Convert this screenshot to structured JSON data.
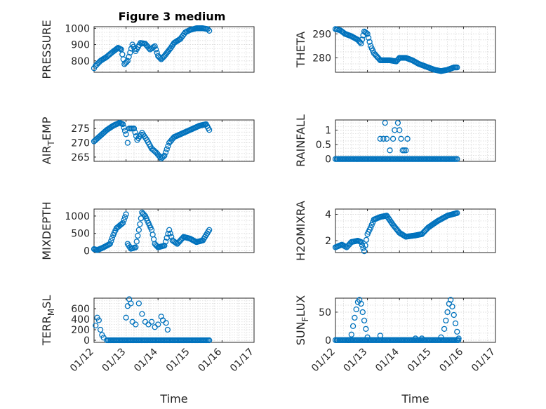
{
  "figure_title": "Figure 3 medium",
  "colors": {
    "marker": "#0072BD",
    "axis": "#262626",
    "grid": "#d9d9d9",
    "background": "#ffffff"
  },
  "chart_data": [
    {
      "type": "scatter",
      "ylabel": "PRESSURE",
      "title": "Figure 3 medium",
      "xlim": [
        0,
        5
      ],
      "ylim": [
        730,
        1010
      ],
      "yticks": [
        800,
        900,
        1000
      ],
      "xtick_labels": [],
      "xlabel": "",
      "grid": true,
      "keypoints": [
        [
          0,
          755
        ],
        [
          0.05,
          770
        ],
        [
          0.2,
          800
        ],
        [
          0.4,
          825
        ],
        [
          0.55,
          850
        ],
        [
          0.75,
          880
        ],
        [
          0.85,
          870
        ],
        [
          0.95,
          780
        ],
        [
          1.05,
          800
        ],
        [
          1.2,
          900
        ],
        [
          1.3,
          860
        ],
        [
          1.45,
          910
        ],
        [
          1.6,
          905
        ],
        [
          1.75,
          870
        ],
        [
          1.9,
          890
        ],
        [
          2.0,
          830
        ],
        [
          2.1,
          810
        ],
        [
          2.2,
          830
        ],
        [
          2.4,
          880
        ],
        [
          2.5,
          910
        ],
        [
          2.7,
          935
        ],
        [
          2.85,
          975
        ],
        [
          3.0,
          990
        ],
        [
          3.2,
          1000
        ],
        [
          3.4,
          1000
        ],
        [
          3.55,
          995
        ],
        [
          3.6,
          985
        ]
      ]
    },
    {
      "type": "scatter",
      "ylabel": "THETA",
      "title": "",
      "xlim": [
        0,
        5
      ],
      "ylim": [
        274,
        293
      ],
      "yticks": [
        280,
        290
      ],
      "xtick_labels": [],
      "xlabel": "",
      "grid": true,
      "keypoints": [
        [
          0,
          292
        ],
        [
          0.15,
          291.5
        ],
        [
          0.3,
          290
        ],
        [
          0.5,
          289
        ],
        [
          0.7,
          287.5
        ],
        [
          0.8,
          286
        ],
        [
          0.9,
          291
        ],
        [
          1.0,
          290
        ],
        [
          1.1,
          285
        ],
        [
          1.2,
          282
        ],
        [
          1.4,
          279
        ],
        [
          1.7,
          279
        ],
        [
          1.9,
          278.5
        ],
        [
          2.0,
          280
        ],
        [
          2.2,
          280
        ],
        [
          2.4,
          279
        ],
        [
          2.6,
          277.5
        ],
        [
          2.9,
          276
        ],
        [
          3.1,
          275
        ],
        [
          3.3,
          274.5
        ],
        [
          3.5,
          275
        ],
        [
          3.7,
          276
        ],
        [
          3.8,
          276
        ]
      ]
    },
    {
      "type": "scatter",
      "ylabel": "AIR_TEMP",
      "title": "",
      "xlim": [
        0,
        5
      ],
      "ylim": [
        263.5,
        278
      ],
      "yticks": [
        265,
        270,
        275
      ],
      "xtick_labels": [],
      "xlabel": "",
      "grid": true,
      "keypoints": [
        [
          0,
          270.5
        ],
        [
          0.2,
          272.5
        ],
        [
          0.4,
          274.5
        ],
        [
          0.6,
          276
        ],
        [
          0.8,
          277
        ],
        [
          0.9,
          276.5
        ],
        [
          1.0,
          273
        ],
        [
          1.05,
          270
        ],
        [
          1.1,
          275
        ],
        [
          1.25,
          275
        ],
        [
          1.35,
          271
        ],
        [
          1.5,
          273.5
        ],
        [
          1.65,
          271
        ],
        [
          1.8,
          268
        ],
        [
          1.95,
          266.5
        ],
        [
          2.1,
          264.5
        ],
        [
          2.2,
          265.5
        ],
        [
          2.35,
          270
        ],
        [
          2.5,
          272
        ],
        [
          2.7,
          273
        ],
        [
          2.9,
          274
        ],
        [
          3.1,
          275
        ],
        [
          3.3,
          276
        ],
        [
          3.5,
          276.5
        ],
        [
          3.6,
          274.5
        ]
      ]
    },
    {
      "type": "scatter",
      "ylabel": "RAINFALL",
      "title": "",
      "xlim": [
        0,
        5
      ],
      "ylim": [
        -0.08,
        1.35
      ],
      "yticks": [
        0,
        0.5,
        1
      ],
      "ytick_labels": [
        "0",
        "0.5",
        "1"
      ],
      "xtick_labels": [],
      "xlabel": "",
      "grid": true,
      "points": [
        [
          1.4,
          0.7
        ],
        [
          1.5,
          0.7
        ],
        [
          1.55,
          1.25
        ],
        [
          1.6,
          0.7
        ],
        [
          1.7,
          0.3
        ],
        [
          1.8,
          0.7
        ],
        [
          1.85,
          1.0
        ],
        [
          1.95,
          1.25
        ],
        [
          2.0,
          1.0
        ],
        [
          2.05,
          0.7
        ],
        [
          2.1,
          0.3
        ],
        [
          2.15,
          0.3
        ],
        [
          2.2,
          0.3
        ],
        [
          2.25,
          0.7
        ]
      ],
      "baseline": {
        "value": 0,
        "x_from": 0,
        "x_to": 3.8
      }
    },
    {
      "type": "scatter",
      "ylabel": "MIXDEPTH",
      "title": "",
      "xlim": [
        0,
        5
      ],
      "ylim": [
        -50,
        1200
      ],
      "yticks": [
        0,
        500,
        1000
      ],
      "xtick_labels": [],
      "xlabel": "",
      "grid": true,
      "keypoints": [
        [
          0,
          50
        ],
        [
          0.1,
          20
        ],
        [
          0.3,
          100
        ],
        [
          0.5,
          200
        ],
        [
          0.6,
          450
        ],
        [
          0.7,
          650
        ],
        [
          0.9,
          800
        ],
        [
          1.0,
          1050
        ],
        [
          1.05,
          200
        ],
        [
          1.15,
          60
        ],
        [
          1.3,
          100
        ],
        [
          1.5,
          1100
        ],
        [
          1.6,
          1000
        ],
        [
          1.7,
          800
        ],
        [
          1.8,
          600
        ],
        [
          1.9,
          200
        ],
        [
          2.0,
          100
        ],
        [
          2.2,
          150
        ],
        [
          2.35,
          600
        ],
        [
          2.45,
          300
        ],
        [
          2.6,
          200
        ],
        [
          2.8,
          400
        ],
        [
          3.0,
          350
        ],
        [
          3.2,
          250
        ],
        [
          3.4,
          300
        ],
        [
          3.6,
          600
        ]
      ]
    },
    {
      "type": "scatter",
      "ylabel": "H2OMIXRA",
      "title": "",
      "xlim": [
        0,
        5
      ],
      "ylim": [
        1.1,
        4.4
      ],
      "yticks": [
        2,
        4
      ],
      "xtick_labels": [],
      "xlabel": "",
      "grid": true,
      "keypoints": [
        [
          0,
          1.5
        ],
        [
          0.2,
          1.7
        ],
        [
          0.35,
          1.5
        ],
        [
          0.5,
          1.9
        ],
        [
          0.7,
          2.0
        ],
        [
          0.8,
          1.9
        ],
        [
          0.9,
          1.2
        ],
        [
          1.0,
          2.5
        ],
        [
          1.1,
          3.0
        ],
        [
          1.2,
          3.6
        ],
        [
          1.4,
          3.8
        ],
        [
          1.6,
          3.9
        ],
        [
          1.8,
          3.2
        ],
        [
          2.0,
          2.6
        ],
        [
          2.2,
          2.3
        ],
        [
          2.5,
          2.4
        ],
        [
          2.7,
          2.5
        ],
        [
          2.9,
          3.0
        ],
        [
          3.2,
          3.5
        ],
        [
          3.5,
          3.9
        ],
        [
          3.8,
          4.1
        ]
      ]
    },
    {
      "type": "scatter",
      "ylabel": "TERR_MSL",
      "title": "",
      "xlim": [
        0,
        5
      ],
      "ylim": [
        -40,
        800
      ],
      "yticks": [
        0,
        200,
        400,
        600
      ],
      "xtick_labels": [
        "01/12",
        "01/13",
        "01/14",
        "01/15",
        "01/16",
        "01/17"
      ],
      "xlabel": "Time",
      "grid": true,
      "points": [
        [
          0.05,
          280
        ],
        [
          0.1,
          430
        ],
        [
          0.15,
          380
        ],
        [
          0.2,
          200
        ],
        [
          0.25,
          100
        ],
        [
          0.3,
          50
        ],
        [
          1.0,
          430
        ],
        [
          1.05,
          650
        ],
        [
          1.1,
          780
        ],
        [
          1.15,
          700
        ],
        [
          1.2,
          350
        ],
        [
          1.3,
          300
        ],
        [
          1.4,
          700
        ],
        [
          1.5,
          500
        ],
        [
          1.6,
          350
        ],
        [
          1.7,
          300
        ],
        [
          1.8,
          350
        ],
        [
          1.9,
          250
        ],
        [
          2.0,
          300
        ],
        [
          2.1,
          450
        ],
        [
          2.15,
          380
        ],
        [
          2.25,
          330
        ],
        [
          2.3,
          200
        ]
      ],
      "baseline": {
        "value": 0,
        "x_from": 0.4,
        "x_to": 3.6
      },
      "baseline2": {
        "value": 0,
        "x_from": 2.4,
        "x_to": 3.6
      }
    },
    {
      "type": "scatter",
      "ylabel": "SUN_FLUX",
      "title": "",
      "xlim": [
        0,
        5
      ],
      "ylim": [
        -4,
        75
      ],
      "yticks": [
        0,
        50
      ],
      "xtick_labels": [
        "01/12",
        "01/13",
        "01/14",
        "01/15",
        "01/16",
        "01/17"
      ],
      "xlabel": "Time",
      "grid": true,
      "points": [
        [
          0.4,
          0
        ],
        [
          0.5,
          10
        ],
        [
          0.55,
          25
        ],
        [
          0.6,
          40
        ],
        [
          0.65,
          55
        ],
        [
          0.7,
          68
        ],
        [
          0.75,
          72
        ],
        [
          0.8,
          65
        ],
        [
          0.85,
          50
        ],
        [
          0.9,
          35
        ],
        [
          0.95,
          20
        ],
        [
          1.0,
          5
        ],
        [
          1.4,
          8
        ],
        [
          2.5,
          3
        ],
        [
          2.7,
          3
        ],
        [
          3.3,
          5
        ],
        [
          3.4,
          20
        ],
        [
          3.45,
          35
        ],
        [
          3.5,
          50
        ],
        [
          3.55,
          65
        ],
        [
          3.6,
          72
        ],
        [
          3.65,
          60
        ],
        [
          3.7,
          45
        ],
        [
          3.75,
          30
        ],
        [
          3.8,
          15
        ],
        [
          3.85,
          3
        ]
      ],
      "baseline": {
        "value": 0,
        "x_from": 0,
        "x_to": 3.85
      }
    }
  ]
}
